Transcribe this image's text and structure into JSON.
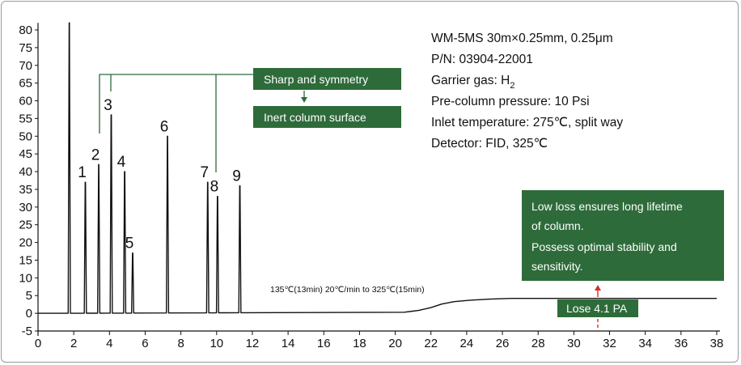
{
  "colors": {
    "green": "#2e6b3a",
    "trace": "#111111",
    "arrow_red": "#d32f2f"
  },
  "info_lines": [
    "WM-5MS 30m×0.25mm, 0.25μm",
    "P/N: 03904-22001",
    "Garrier gas: H",
    "Pre-column pressure: 10 Psi",
    "Inlet temperature: 275℃, split way",
    "Detector: FID, 325℃"
  ],
  "info_subscript": "2",
  "callouts": {
    "sharp": "Sharp and symmetry",
    "inert": "Inert column surface",
    "lifetime_lines": [
      "Low loss ensures long lifetime",
      "of column.",
      "Possess optimal stability and",
      "sensitivity."
    ],
    "lose": "Lose 4.1 PA"
  },
  "program_note": "135℃(13min) 20℃/min to 325℃(15min)",
  "chart_data": {
    "type": "line",
    "xlim": [
      0,
      38
    ],
    "ylim": [
      -5,
      82
    ],
    "x_ticks": [
      0,
      2,
      4,
      6,
      8,
      10,
      12,
      14,
      16,
      18,
      20,
      22,
      24,
      26,
      28,
      30,
      32,
      34,
      36,
      38
    ],
    "y_ticks": [
      -5,
      0,
      5,
      10,
      15,
      20,
      25,
      30,
      35,
      40,
      45,
      50,
      55,
      60,
      65,
      70,
      75,
      80
    ],
    "grid": false,
    "baseline": [
      [
        0,
        0
      ],
      [
        1.45,
        0
      ],
      [
        20.5,
        0.3
      ],
      [
        21.3,
        0.8
      ],
      [
        22.0,
        1.6
      ],
      [
        22.6,
        2.6
      ],
      [
        23.3,
        3.3
      ],
      [
        24.2,
        3.7
      ],
      [
        25.3,
        4.0
      ],
      [
        26.5,
        4.2
      ],
      [
        38,
        4.2
      ]
    ],
    "peaks": [
      {
        "label": "",
        "x": 1.75,
        "height": 82
      },
      {
        "label": "1",
        "x": 2.65,
        "height": 37
      },
      {
        "label": "2",
        "x": 3.4,
        "height": 42
      },
      {
        "label": "3",
        "x": 4.1,
        "height": 56
      },
      {
        "label": "4",
        "x": 4.85,
        "height": 40
      },
      {
        "label": "5",
        "x": 5.3,
        "height": 17
      },
      {
        "label": "6",
        "x": 7.25,
        "height": 50
      },
      {
        "label": "7",
        "x": 9.5,
        "height": 37
      },
      {
        "label": "8",
        "x": 10.05,
        "height": 33
      },
      {
        "label": "9",
        "x": 11.3,
        "height": 36
      }
    ]
  }
}
